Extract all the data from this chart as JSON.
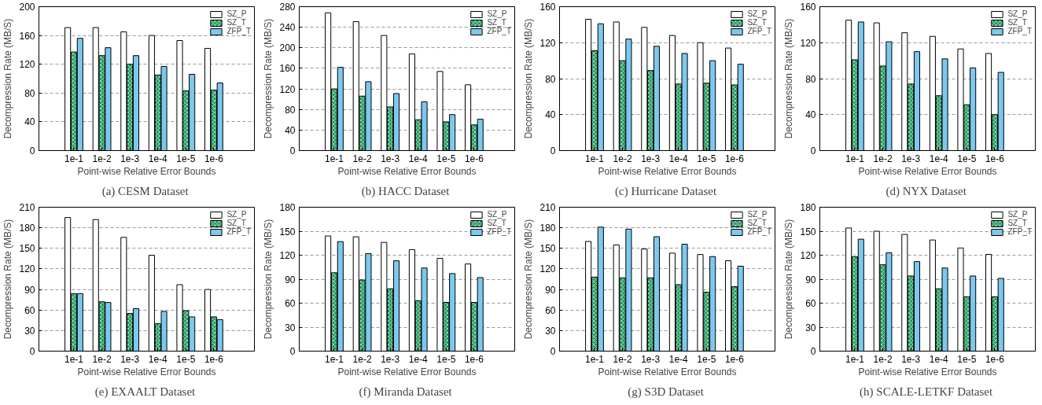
{
  "chart_data": [
    {
      "type": "bar",
      "title": "(a)  CESM Dataset",
      "xlabel": "Point-wise Relative Error Bounds",
      "ylabel": "Decompression Rate (MB/S)",
      "categories": [
        "1e-1",
        "1e-2",
        "1e-3",
        "1e-4",
        "1e-5",
        "1e-6"
      ],
      "ylim": [
        0,
        200
      ],
      "yticks": [
        0,
        40,
        80,
        120,
        160,
        200
      ],
      "grid": "y",
      "legend": "top right",
      "series": [
        {
          "name": "SZ_P",
          "color": "#ffffff",
          "values": [
            171,
            171,
            165,
            160,
            153,
            142
          ]
        },
        {
          "name": "SZ_T",
          "color": "#1e9a5a",
          "values": [
            137,
            132,
            120,
            105,
            83,
            84
          ]
        },
        {
          "name": "ZFP_T",
          "color": "#7cc8ee",
          "values": [
            156,
            143,
            132,
            117,
            106,
            94
          ]
        }
      ]
    },
    {
      "type": "bar",
      "title": "(b)  HACC Dataset",
      "xlabel": "Point-wise Relative Error Bounds",
      "ylabel": "Decompression Rate (MB/S)",
      "categories": [
        "1e-1",
        "1e-2",
        "1e-3",
        "1e-4",
        "1e-5",
        "1e-6"
      ],
      "ylim": [
        0,
        280
      ],
      "yticks": [
        0,
        40,
        80,
        120,
        160,
        200,
        240,
        280
      ],
      "grid": "y",
      "legend": "top right",
      "series": [
        {
          "name": "SZ_P",
          "color": "#ffffff",
          "values": [
            268,
            251,
            224,
            188,
            154,
            128
          ]
        },
        {
          "name": "SZ_T",
          "color": "#1e9a5a",
          "values": [
            120,
            106,
            85,
            60,
            56,
            50
          ]
        },
        {
          "name": "ZFP_T",
          "color": "#7cc8ee",
          "values": [
            162,
            134,
            111,
            95,
            70,
            61
          ]
        }
      ]
    },
    {
      "type": "bar",
      "title": "(c)  Hurricane Dataset",
      "xlabel": "Point-wise Relative Error Bounds",
      "ylabel": "Decompression Rate (MB/S)",
      "categories": [
        "1e-1",
        "1e-2",
        "1e-3",
        "1e-4",
        "1e-5",
        "1e-6"
      ],
      "ylim": [
        0,
        160
      ],
      "yticks": [
        0,
        40,
        80,
        120,
        160
      ],
      "grid": "y",
      "legend": "top right",
      "series": [
        {
          "name": "SZ_P",
          "color": "#ffffff",
          "values": [
            146,
            143,
            137,
            128,
            120,
            114
          ]
        },
        {
          "name": "SZ_T",
          "color": "#1e9a5a",
          "values": [
            111,
            100,
            89,
            74,
            75,
            73
          ]
        },
        {
          "name": "ZFP_T",
          "color": "#7cc8ee",
          "values": [
            141,
            124,
            116,
            108,
            100,
            96
          ]
        }
      ]
    },
    {
      "type": "bar",
      "title": "(d)  NYX Dataset",
      "xlabel": "Point-wise Relative Error Bounds",
      "ylabel": "Decompression Rate (MB/S)",
      "categories": [
        "1e-1",
        "1e-2",
        "1e-3",
        "1e-4",
        "1e-5",
        "1e-6"
      ],
      "ylim": [
        0,
        160
      ],
      "yticks": [
        0,
        40,
        80,
        120,
        160
      ],
      "grid": "y",
      "legend": "top right",
      "series": [
        {
          "name": "SZ_P",
          "color": "#ffffff",
          "values": [
            145,
            142,
            131,
            127,
            113,
            108
          ]
        },
        {
          "name": "SZ_T",
          "color": "#1e9a5a",
          "values": [
            101,
            94,
            74,
            61,
            51,
            40
          ]
        },
        {
          "name": "ZFP_T",
          "color": "#7cc8ee",
          "values": [
            143,
            121,
            110,
            102,
            92,
            87
          ]
        }
      ]
    },
    {
      "type": "bar",
      "title": "(e)  EXAALT Dataset",
      "xlabel": "Point-wise Relative Error Bounds",
      "ylabel": "Decompression Rate (MB/S)",
      "categories": [
        "1e-1",
        "1e-2",
        "1e-3",
        "1e-4",
        "1e-5",
        "1e-6"
      ],
      "ylim": [
        0,
        210
      ],
      "yticks": [
        0,
        30,
        60,
        90,
        120,
        150,
        180,
        210
      ],
      "grid": "y",
      "legend": "top right",
      "series": [
        {
          "name": "SZ_P",
          "color": "#ffffff",
          "values": [
            195,
            192,
            166,
            140,
            97,
            90
          ]
        },
        {
          "name": "SZ_T",
          "color": "#1e9a5a",
          "values": [
            84,
            72,
            55,
            40,
            59,
            50
          ]
        },
        {
          "name": "ZFP_T",
          "color": "#7cc8ee",
          "values": [
            84,
            71,
            62,
            58,
            50,
            46
          ]
        }
      ]
    },
    {
      "type": "bar",
      "title": "(f)  Miranda Dataset",
      "xlabel": "Point-wise Relative Error Bounds",
      "ylabel": "Decompression Rate (MB/S)",
      "categories": [
        "1e-1",
        "1e-2",
        "1e-3",
        "1e-4",
        "1e-5",
        "1e-6"
      ],
      "ylim": [
        0,
        180
      ],
      "yticks": [
        0,
        30,
        60,
        90,
        120,
        150,
        180
      ],
      "grid": "y",
      "legend": "top right",
      "series": [
        {
          "name": "SZ_P",
          "color": "#ffffff",
          "values": [
            144,
            143,
            136,
            127,
            116,
            109
          ]
        },
        {
          "name": "SZ_T",
          "color": "#1e9a5a",
          "values": [
            98,
            89,
            78,
            63,
            61,
            61
          ]
        },
        {
          "name": "ZFP_T",
          "color": "#7cc8ee",
          "values": [
            137,
            122,
            113,
            104,
            97,
            92
          ]
        }
      ]
    },
    {
      "type": "bar",
      "title": "(g)  S3D Dataset",
      "xlabel": "Point-wise Relative Error Bounds",
      "ylabel": "Decompression Rate (MB/S)",
      "categories": [
        "1e-1",
        "1e-2",
        "1e-3",
        "1e-4",
        "1e-5",
        "1e-6"
      ],
      "ylim": [
        0,
        210
      ],
      "yticks": [
        0,
        30,
        60,
        90,
        120,
        150,
        180,
        210
      ],
      "grid": "y",
      "legend": "top right",
      "series": [
        {
          "name": "SZ_P",
          "color": "#ffffff",
          "values": [
            160,
            155,
            149,
            143,
            141,
            132
          ]
        },
        {
          "name": "SZ_T",
          "color": "#1e9a5a",
          "values": [
            108,
            107,
            107,
            97,
            86,
            94
          ]
        },
        {
          "name": "ZFP_T",
          "color": "#7cc8ee",
          "values": [
            181,
            178,
            167,
            156,
            138,
            124
          ]
        }
      ]
    },
    {
      "type": "bar",
      "title": "(h)  SCALE-LETKF Dataset",
      "xlabel": "Point-wise Relative Error Bounds",
      "ylabel": "Decompression Rate (MB/S)",
      "categories": [
        "1e-1",
        "1e-2",
        "1e-3",
        "1e-4",
        "1e-5",
        "1e-6"
      ],
      "ylim": [
        0,
        180
      ],
      "yticks": [
        0,
        30,
        60,
        90,
        120,
        150,
        180
      ],
      "grid": "y",
      "legend": "top right",
      "series": [
        {
          "name": "SZ_P",
          "color": "#ffffff",
          "values": [
            154,
            150,
            146,
            139,
            129,
            121
          ]
        },
        {
          "name": "SZ_T",
          "color": "#1e9a5a",
          "values": [
            118,
            108,
            94,
            78,
            68,
            68
          ]
        },
        {
          "name": "ZFP_T",
          "color": "#7cc8ee",
          "values": [
            140,
            123,
            112,
            104,
            94,
            91
          ]
        }
      ]
    }
  ]
}
